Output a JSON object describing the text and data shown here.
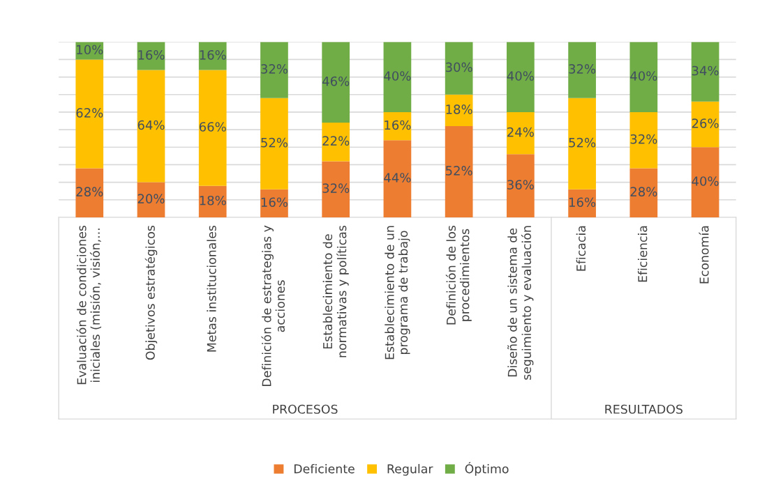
{
  "chart_data": {
    "type": "bar",
    "stacked": true,
    "categories": [
      "Evaluación de condiciones\niniciales (misión, visión,...",
      "Objetivos estratégicos",
      "Metas institucionales",
      "Definición de estrategias y\nacciones",
      "Establecimiento de\nnormativas y políticas",
      "Establecimiento de un\nprograma de trabajo",
      "Definición de los\nprocedimientos",
      "Diseño de un sistema de\nseguimiento y evaluación",
      "Eficacia",
      "Eficiencia",
      "Economía"
    ],
    "series": [
      {
        "name": "Deficiente",
        "color": "#ed7d31",
        "values": [
          28,
          20,
          18,
          16,
          32,
          44,
          52,
          36,
          16,
          28,
          40
        ],
        "value_labels": [
          "28%",
          "20%",
          "18%",
          "16%",
          "32%",
          "44%",
          "52%",
          "36%",
          "16%",
          "28%",
          "40%"
        ]
      },
      {
        "name": "Regular",
        "color": "#ffc000",
        "values": [
          62,
          64,
          66,
          52,
          22,
          16,
          18,
          24,
          52,
          32,
          26
        ],
        "value_labels": [
          "62%",
          "64%",
          "66%",
          "52%",
          "22%",
          "16%",
          "18%",
          "24%",
          "52%",
          "32%",
          "26%"
        ]
      },
      {
        "name": "Óptimo",
        "color": "#70ad47",
        "values": [
          10,
          16,
          16,
          32,
          46,
          40,
          30,
          40,
          32,
          40,
          34
        ],
        "value_labels": [
          "10%",
          "16%",
          "16%",
          "32%",
          "46%",
          "40%",
          "30%",
          "40%",
          "32%",
          "40%",
          "34%"
        ]
      }
    ],
    "tick_labels": "x",
    "grid": "y",
    "legend": "bottom",
    "annotations": [
      "PROCESOS",
      "RESULTADOS"
    ]
  }
}
